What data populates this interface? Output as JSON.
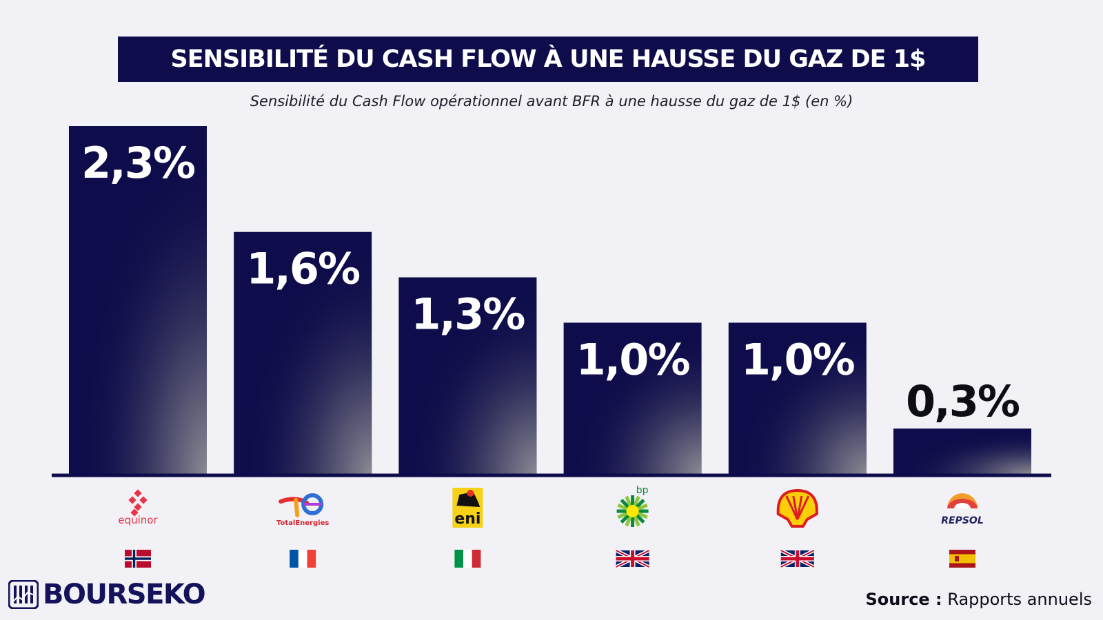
{
  "title": "SENSIBILITÉ DU CASH FLOW À UNE HAUSSE DU GAZ DE 1$",
  "subtitle": "Sensibilité du Cash Flow opérationnel avant BFR à une hausse du gaz de 1$ (en %)",
  "brand": "BOURSEKO",
  "source": {
    "label": "Source :",
    "text": "Rapports annuels"
  },
  "colors": {
    "bar": "#0e0c4a",
    "background": "#f2f1f5",
    "label_inside": "#ffffff",
    "label_outside": "#0d0d14"
  },
  "chart_data": {
    "type": "bar",
    "categories": [
      "equinor",
      "TotalEnergies",
      "eni",
      "bp",
      "Shell",
      "REPSOL"
    ],
    "values": [
      2.3,
      1.6,
      1.3,
      1.0,
      1.0,
      0.3
    ],
    "data_labels": [
      "2,3%",
      "1,6%",
      "1,3%",
      "1,0%",
      "1,0%",
      "0,3%"
    ],
    "countries": [
      "Norway",
      "France",
      "Italy",
      "United Kingdom",
      "United Kingdom",
      "Spain"
    ],
    "unit": "%",
    "ylim": [
      0,
      2.3
    ],
    "grid": false,
    "legend": "none"
  }
}
